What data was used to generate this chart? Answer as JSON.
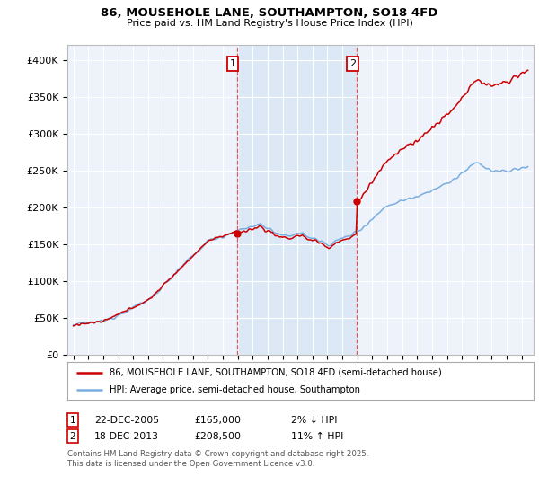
{
  "title": "86, MOUSEHOLE LANE, SOUTHAMPTON, SO18 4FD",
  "subtitle": "Price paid vs. HM Land Registry's House Price Index (HPI)",
  "ytick_values": [
    0,
    50000,
    100000,
    150000,
    200000,
    250000,
    300000,
    350000,
    400000
  ],
  "ylim": [
    0,
    420000
  ],
  "xlim_start": 1994.6,
  "xlim_end": 2025.8,
  "purchase1_year": 2005.97,
  "purchase1_price": 165000,
  "purchase2_year": 2013.97,
  "purchase2_price": 208500,
  "legend_line1": "86, MOUSEHOLE LANE, SOUTHAMPTON, SO18 4FD (semi-detached house)",
  "legend_line2": "HPI: Average price, semi-detached house, Southampton",
  "ann1_date": "22-DEC-2005",
  "ann1_price": "£165,000",
  "ann1_pct": "2% ↓ HPI",
  "ann2_date": "18-DEC-2013",
  "ann2_price": "£208,500",
  "ann2_pct": "11% ↑ HPI",
  "footer": "Contains HM Land Registry data © Crown copyright and database right 2025.\nThis data is licensed under the Open Government Licence v3.0.",
  "line_color_red": "#cc0000",
  "line_color_blue": "#7aade0",
  "background_color": "#ffffff",
  "plot_bg_color": "#edf2fb",
  "grid_color": "#ffffff",
  "shade_color": "#dce8f5"
}
